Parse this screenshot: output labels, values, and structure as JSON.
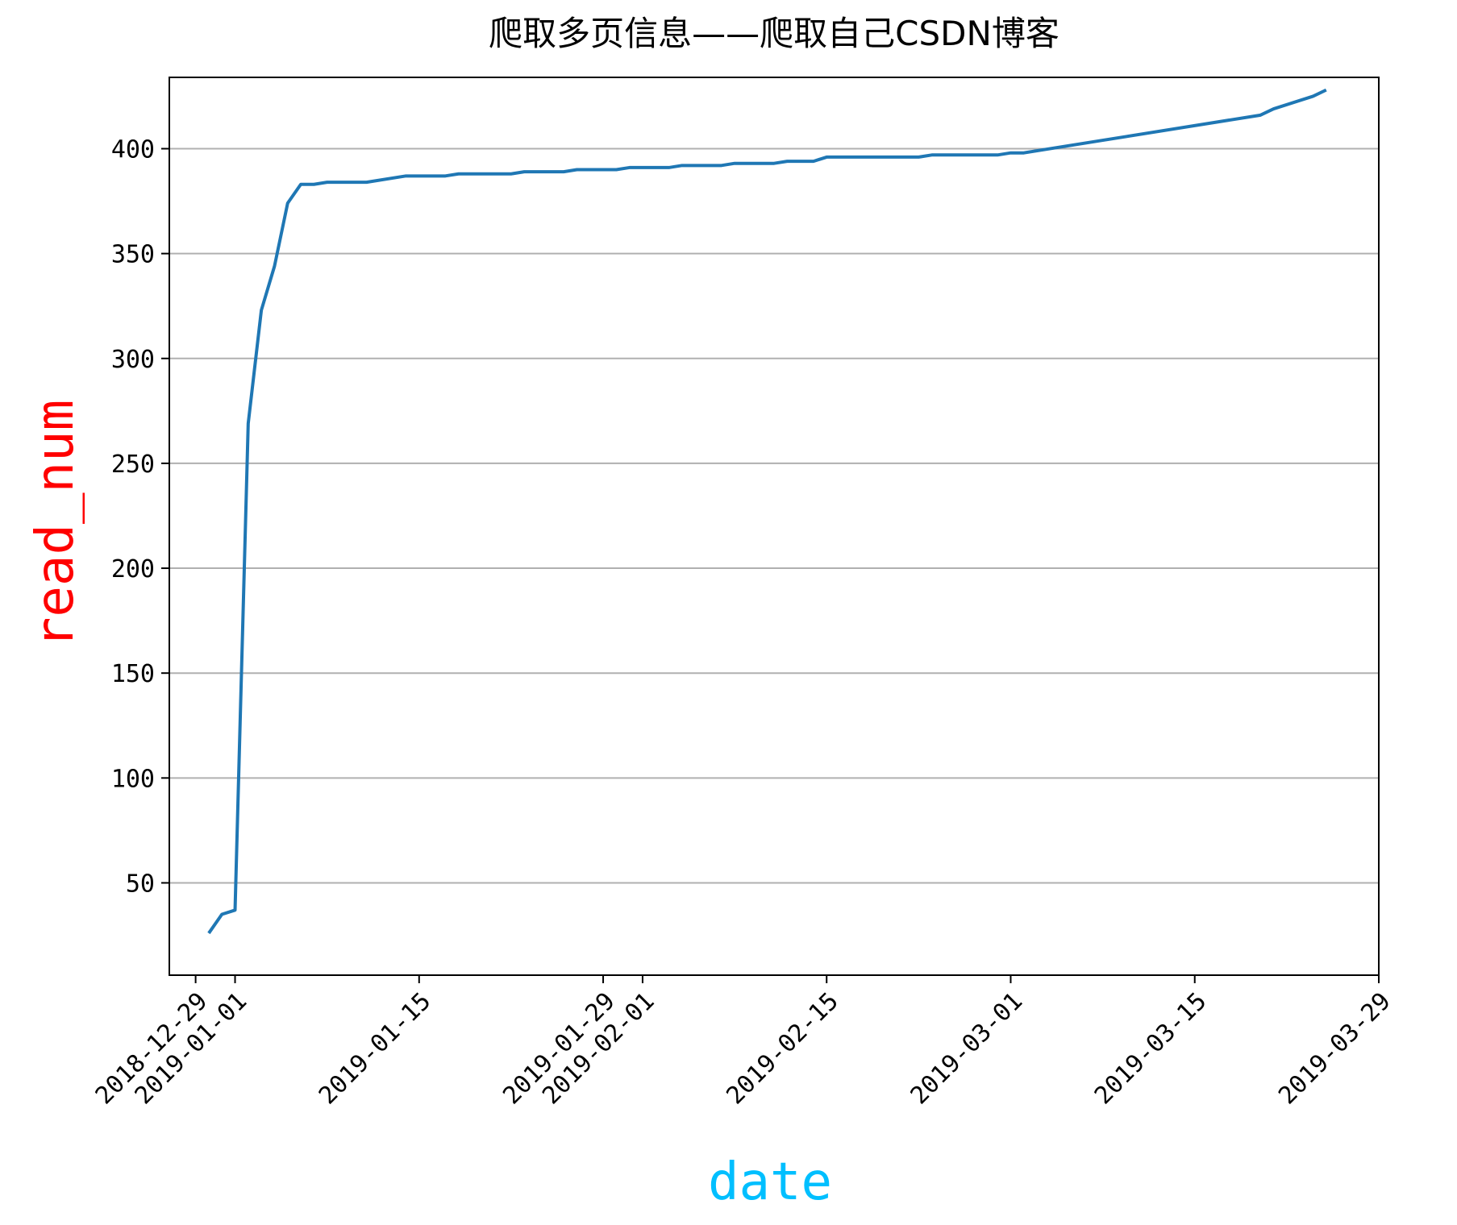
{
  "chart_data": {
    "type": "line",
    "title": "爬取多页信息——爬取自己CSDN博客",
    "xlabel": "date",
    "ylabel": "read_num",
    "xlabel_color": "#00bfff",
    "ylabel_color": "#ff0000",
    "line_color": "#1f77b4",
    "grid": "y",
    "xlim": [
      "2018-12-27",
      "2019-03-29"
    ],
    "ylim": [
      6,
      434
    ],
    "xticks": [
      "2018-12-29",
      "2019-01-01",
      "2019-01-15",
      "2019-01-29",
      "2019-02-01",
      "2019-02-15",
      "2019-03-01",
      "2019-03-15",
      "2019-03-29"
    ],
    "yticks": [
      50,
      100,
      150,
      200,
      250,
      300,
      350,
      400
    ],
    "series": [
      {
        "x": [
          "2018-12-30",
          "2018-12-31",
          "2019-01-01",
          "2019-01-02",
          "2019-01-03",
          "2019-01-04",
          "2019-01-05",
          "2019-01-06",
          "2019-01-07",
          "2019-01-08",
          "2019-01-09",
          "2019-01-11",
          "2019-01-14",
          "2019-01-17",
          "2019-01-18",
          "2019-01-22",
          "2019-01-23",
          "2019-01-26",
          "2019-01-27",
          "2019-01-30",
          "2019-01-31",
          "2019-02-03",
          "2019-02-04",
          "2019-02-07",
          "2019-02-08",
          "2019-02-11",
          "2019-02-12",
          "2019-02-14",
          "2019-02-15",
          "2019-02-22",
          "2019-02-23",
          "2019-02-28",
          "2019-03-01",
          "2019-03-02",
          "2019-03-08",
          "2019-03-20",
          "2019-03-21",
          "2019-03-24",
          "2019-03-25"
        ],
        "values": [
          26,
          35,
          37,
          269,
          323,
          344,
          374,
          383,
          383,
          384,
          384,
          384,
          387,
          387,
          388,
          388,
          389,
          389,
          390,
          390,
          391,
          391,
          392,
          392,
          393,
          393,
          394,
          394,
          396,
          396,
          397,
          397,
          398,
          398,
          404,
          416,
          419,
          425,
          428
        ]
      }
    ]
  }
}
